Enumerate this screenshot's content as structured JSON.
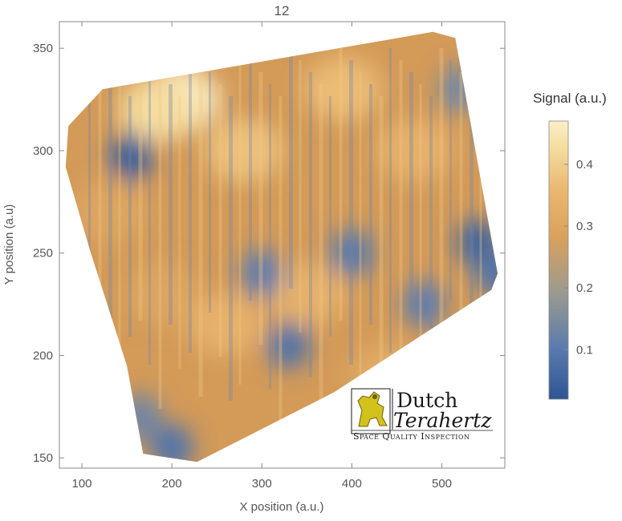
{
  "chart_data": {
    "type": "heatmap",
    "title": "12",
    "xlabel": "X position (a.u.)",
    "ylabel": "Y position (a.u)",
    "xlim": [
      75,
      570
    ],
    "ylim": [
      145,
      363
    ],
    "x_ticks": [
      100,
      200,
      300,
      400,
      500
    ],
    "y_ticks": [
      150,
      200,
      250,
      300,
      350
    ],
    "region_outline": [
      [
        85,
        312
      ],
      [
        123,
        330
      ],
      [
        490,
        358
      ],
      [
        515,
        355
      ],
      [
        562,
        240
      ],
      [
        555,
        232
      ],
      [
        380,
        182
      ],
      [
        228,
        148
      ],
      [
        168,
        152
      ],
      [
        150,
        195
      ],
      [
        110,
        250
      ],
      [
        82,
        292
      ]
    ],
    "colorbar": {
      "title": "Signal (a.u.)",
      "range": [
        0.02,
        0.47
      ],
      "ticks": [
        0.1,
        0.2,
        0.3,
        0.4
      ]
    },
    "color_scale": [
      "#2e5593",
      "#5a7aae",
      "#9a9a90",
      "#d9a15c",
      "#e9b770",
      "#f5dc9e",
      "#fbefc7"
    ],
    "hotspots": [
      {
        "x": 210,
        "y": 325,
        "value": 0.46
      },
      {
        "x": 185,
        "y": 320,
        "value": 0.4
      },
      {
        "x": 280,
        "y": 300,
        "value": 0.34
      },
      {
        "x": 390,
        "y": 330,
        "value": 0.33
      },
      {
        "x": 350,
        "y": 230,
        "value": 0.3
      },
      {
        "x": 260,
        "y": 215,
        "value": 0.3
      },
      {
        "x": 440,
        "y": 190,
        "value": 0.28
      },
      {
        "x": 190,
        "y": 230,
        "value": 0.26
      },
      {
        "x": 130,
        "y": 270,
        "value": 0.26
      },
      {
        "x": 470,
        "y": 300,
        "value": 0.3
      },
      {
        "x": 155,
        "y": 297,
        "value": 0.04
      },
      {
        "x": 330,
        "y": 205,
        "value": 0.08
      },
      {
        "x": 540,
        "y": 255,
        "value": 0.05
      },
      {
        "x": 300,
        "y": 240,
        "value": 0.1
      },
      {
        "x": 400,
        "y": 250,
        "value": 0.09
      },
      {
        "x": 200,
        "y": 155,
        "value": 0.08
      },
      {
        "x": 480,
        "y": 225,
        "value": 0.1
      },
      {
        "x": 520,
        "y": 330,
        "value": 0.13
      },
      {
        "x": 165,
        "y": 170,
        "value": 0.12
      },
      {
        "x": 560,
        "y": 240,
        "value": 0.08
      }
    ]
  },
  "logo": {
    "line1": "Dutch",
    "line2": "Terahertz",
    "tagline": "Space Quality Inspection",
    "colors": {
      "emblem": "#d4c21c",
      "text": "#1a1a1a"
    }
  }
}
